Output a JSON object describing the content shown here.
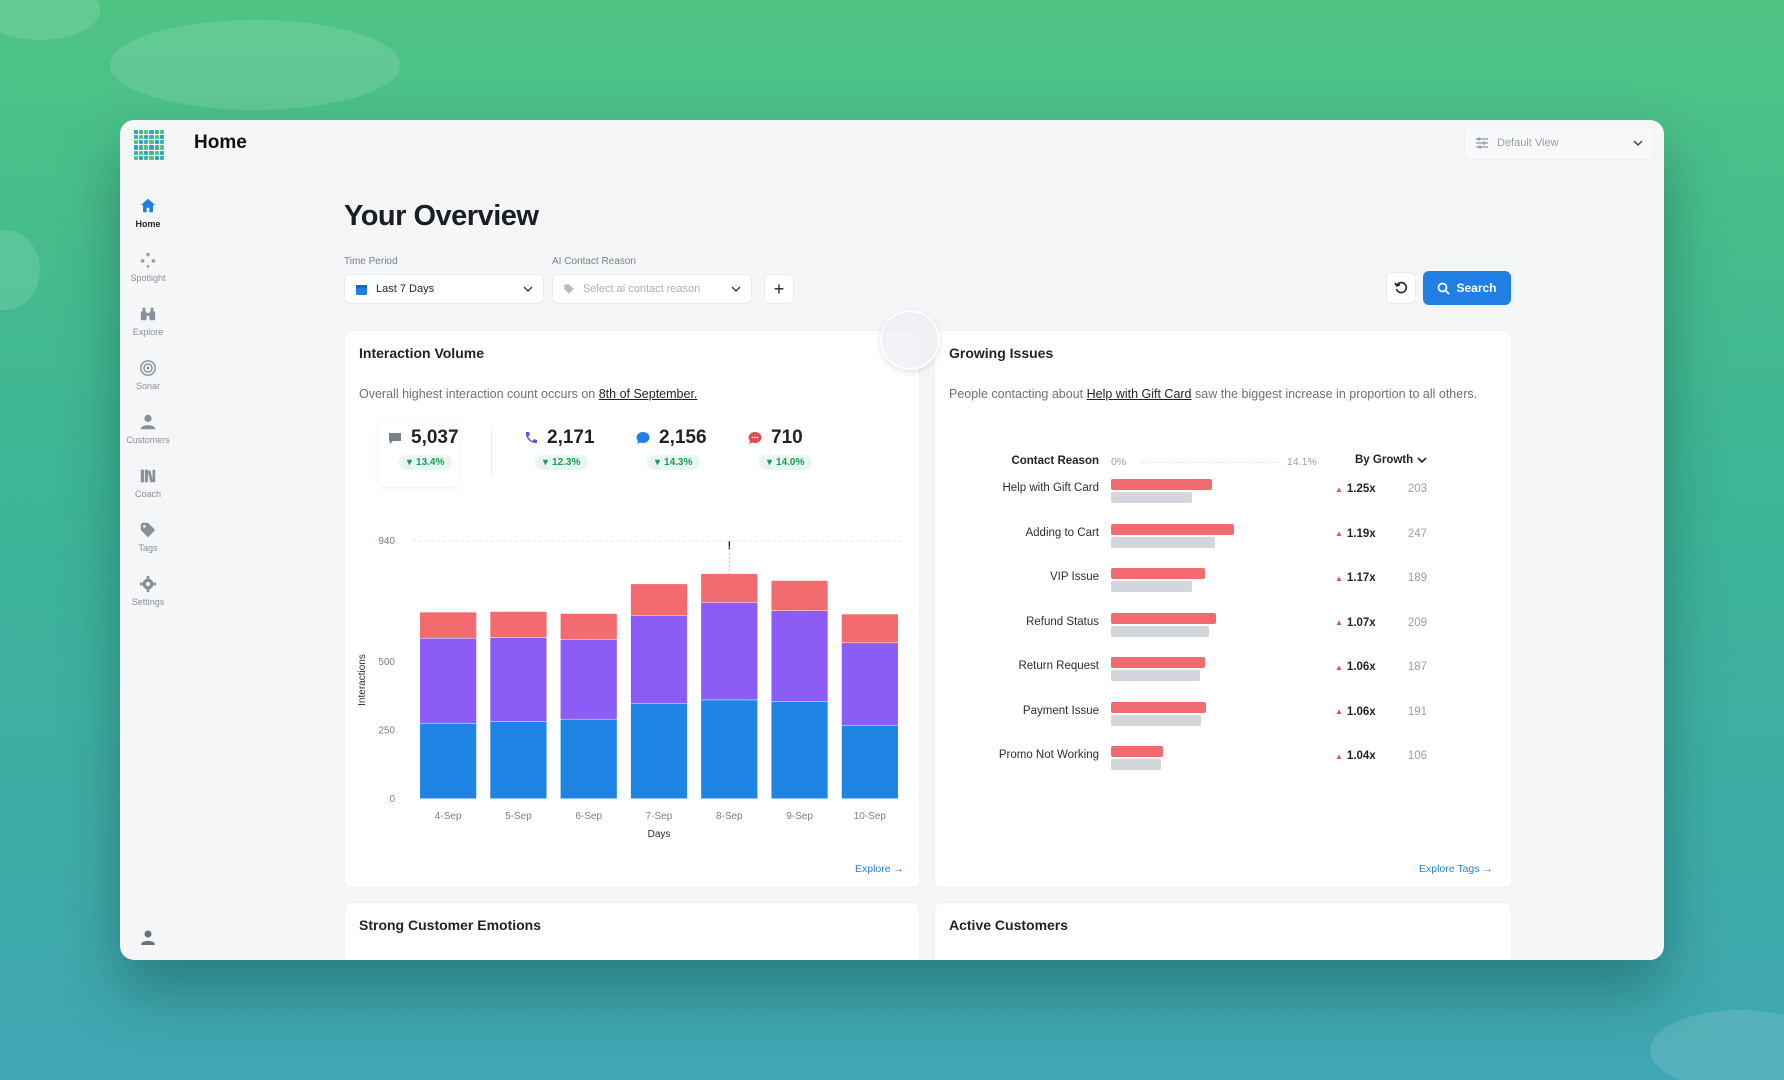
{
  "header": {
    "title": "Home",
    "view_select": "Default View"
  },
  "sidebar": {
    "items": [
      {
        "label": "Home",
        "icon": "home-icon"
      },
      {
        "label": "Spotlight",
        "icon": "spotlight-icon"
      },
      {
        "label": "Explore",
        "icon": "binoculars-icon"
      },
      {
        "label": "Sonar",
        "icon": "target-icon"
      },
      {
        "label": "Customers",
        "icon": "user-icon"
      },
      {
        "label": "Coach",
        "icon": "books-icon"
      },
      {
        "label": "Tags",
        "icon": "tag-icon"
      },
      {
        "label": "Settings",
        "icon": "gear-icon"
      }
    ]
  },
  "overview": {
    "title": "Your Overview",
    "time_period_label": "Time Period",
    "time_period_value": "Last 7 Days",
    "contact_reason_label": "AI Contact Reason",
    "contact_reason_placeholder": "Select ai contact reason",
    "search_label": "Search"
  },
  "interaction_volume": {
    "title": "Interaction Volume",
    "desc_prefix": "Overall highest interaction count occurs on ",
    "desc_link": "8th of September.",
    "kpis": [
      {
        "value": "5,037",
        "change": "13.4%",
        "icon": "chat-icon",
        "color": "#7a808a"
      },
      {
        "value": "2,171",
        "change": "12.3%",
        "icon": "phone-icon",
        "color": "#6a4fd8"
      },
      {
        "value": "2,156",
        "change": "14.3%",
        "icon": "chat-bubble-icon",
        "color": "#1f7fe5"
      },
      {
        "value": "710",
        "change": "14.0%",
        "icon": "message-icon",
        "color": "#e14e4e"
      }
    ],
    "explore_label": "Explore"
  },
  "chart_data": {
    "type": "bar",
    "stacked": true,
    "categories": [
      "4-Sep",
      "5-Sep",
      "6-Sep",
      "7-Sep",
      "8-Sep",
      "9-Sep",
      "10-Sep"
    ],
    "series": [
      {
        "color": "#1f85e5",
        "values": [
          275,
          282,
          290,
          348,
          360,
          355,
          268
        ]
      },
      {
        "color": "#8b5cf6",
        "values": [
          310,
          305,
          290,
          320,
          355,
          330,
          300
        ]
      },
      {
        "color": "#f26b6f",
        "values": [
          95,
          95,
          95,
          115,
          105,
          110,
          105
        ]
      }
    ],
    "xlabel": "Days",
    "ylabel": "Interactions",
    "yticks": [
      0,
      250,
      500,
      940
    ],
    "ylim": [
      0,
      940
    ],
    "annotation": "!"
  },
  "growing_issues": {
    "title": "Growing Issues",
    "desc_prefix": "People contacting about ",
    "desc_link": "Help with Gift Card",
    "desc_suffix": " saw the biggest increase in proportion to all others.",
    "col_reason": "Contact Reason",
    "col_min": "0%",
    "col_max": "14.1%",
    "sort_label": "By Growth",
    "rows": [
      {
        "label": "Help with Gift Card",
        "current": 0.083,
        "previous": 0.066,
        "growth": "1.25x",
        "count": "203"
      },
      {
        "label": "Adding to Cart",
        "current": 0.101,
        "previous": 0.085,
        "growth": "1.19x",
        "count": "247"
      },
      {
        "label": "VIP Issue",
        "current": 0.077,
        "previous": 0.066,
        "growth": "1.17x",
        "count": "189"
      },
      {
        "label": "Refund Status",
        "current": 0.086,
        "previous": 0.08,
        "growth": "1.07x",
        "count": "209"
      },
      {
        "label": "Return Request",
        "current": 0.077,
        "previous": 0.073,
        "growth": "1.06x",
        "count": "187"
      },
      {
        "label": "Payment Issue",
        "current": 0.078,
        "previous": 0.074,
        "growth": "1.06x",
        "count": "191"
      },
      {
        "label": "Promo Not Working",
        "current": 0.043,
        "previous": 0.041,
        "growth": "1.04x",
        "count": "106"
      }
    ],
    "explore_label": "Explore Tags"
  },
  "bottom_cards": {
    "emotions_title": "Strong Customer Emotions",
    "active_title": "Active Customers"
  }
}
